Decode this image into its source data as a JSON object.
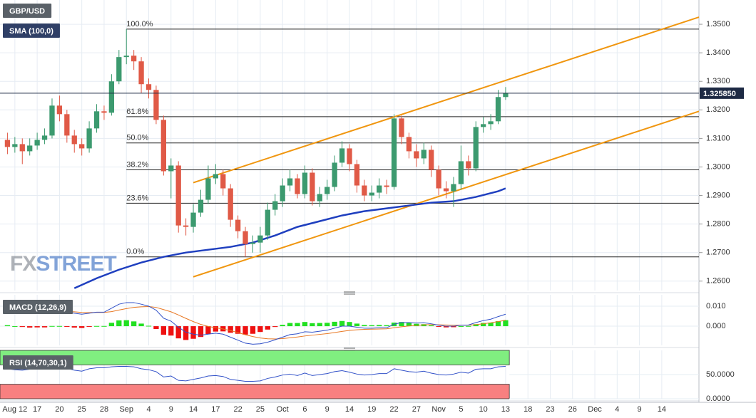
{
  "chart_data": [
    {
      "type": "candlestick",
      "symbol": "GBP/USD",
      "x": [
        0,
        1,
        2,
        3,
        4,
        5,
        6,
        7,
        8,
        9,
        10,
        11,
        12,
        13,
        14,
        15,
        16,
        17,
        18,
        19,
        20,
        21,
        22,
        23,
        24,
        25,
        26,
        27,
        28,
        29,
        30,
        31,
        32,
        33,
        34,
        35,
        36,
        37,
        38,
        39,
        40,
        41,
        42,
        43,
        44,
        45,
        46,
        47,
        48,
        49,
        50,
        51,
        52,
        53,
        54,
        55,
        56,
        57,
        58,
        59,
        60,
        61,
        62,
        63,
        64,
        65,
        66,
        67
      ],
      "open": [
        1.3095,
        1.307,
        1.308,
        1.3055,
        1.3075,
        1.3095,
        1.311,
        1.3215,
        1.3185,
        1.311,
        1.308,
        1.3065,
        1.3135,
        1.3195,
        1.319,
        1.33,
        1.3385,
        1.339,
        1.337,
        1.329,
        1.327,
        1.3165,
        1.2985,
        1.3005,
        1.2795,
        1.279,
        1.284,
        1.2885,
        1.296,
        1.2975,
        1.2925,
        1.2815,
        1.2775,
        1.273,
        1.2735,
        1.276,
        1.285,
        1.288,
        1.2935,
        1.296,
        1.2905,
        1.298,
        1.288,
        1.2905,
        1.293,
        1.3015,
        1.3065,
        1.301,
        1.2935,
        1.29,
        1.291,
        1.2935,
        1.293,
        1.317,
        1.3105,
        1.3055,
        1.303,
        1.306,
        1.299,
        1.2925,
        1.2915,
        1.294,
        1.302,
        1.2995,
        1.314,
        1.315,
        1.316,
        1.3245
      ],
      "high": [
        1.312,
        1.3105,
        1.31,
        1.31,
        1.312,
        1.3135,
        1.324,
        1.325,
        1.32,
        1.313,
        1.31,
        1.316,
        1.322,
        1.3215,
        1.3325,
        1.341,
        1.3483,
        1.341,
        1.3385,
        1.331,
        1.3285,
        1.318,
        1.303,
        1.302,
        1.282,
        1.287,
        1.292,
        1.3005,
        1.301,
        1.299,
        1.294,
        1.283,
        1.279,
        1.276,
        1.279,
        1.2875,
        1.2905,
        1.296,
        1.299,
        1.2975,
        1.3005,
        1.2995,
        1.293,
        1.2955,
        1.304,
        1.309,
        1.308,
        1.3025,
        1.2955,
        1.2935,
        1.296,
        1.2955,
        1.3185,
        1.318,
        1.312,
        1.308,
        1.3085,
        1.3075,
        1.3005,
        1.295,
        1.2965,
        1.3075,
        1.304,
        1.316,
        1.3175,
        1.3185,
        1.327,
        1.328
      ],
      "low": [
        1.3045,
        1.305,
        1.301,
        1.304,
        1.306,
        1.308,
        1.31,
        1.316,
        1.3085,
        1.305,
        1.304,
        1.305,
        1.312,
        1.3165,
        1.318,
        1.329,
        1.336,
        1.334,
        1.326,
        1.324,
        1.315,
        1.297,
        1.289,
        1.277,
        1.276,
        1.277,
        1.2825,
        1.287,
        1.294,
        1.29,
        1.279,
        1.275,
        1.2685,
        1.27,
        1.27,
        1.2745,
        1.283,
        1.286,
        1.2915,
        1.289,
        1.289,
        1.2865,
        1.286,
        1.2885,
        1.2915,
        1.3,
        1.2985,
        1.291,
        1.288,
        1.288,
        1.289,
        1.2905,
        1.292,
        1.308,
        1.303,
        1.3,
        1.301,
        1.2965,
        1.29,
        1.289,
        1.286,
        1.292,
        1.297,
        1.2985,
        1.312,
        1.313,
        1.315,
        1.3235
      ],
      "close": [
        1.307,
        1.308,
        1.3055,
        1.3075,
        1.3095,
        1.311,
        1.3215,
        1.3185,
        1.311,
        1.308,
        1.3065,
        1.3135,
        1.3195,
        1.319,
        1.33,
        1.3385,
        1.339,
        1.337,
        1.329,
        1.327,
        1.3165,
        1.2985,
        1.3005,
        1.2795,
        1.279,
        1.284,
        1.2885,
        1.296,
        1.2975,
        1.2925,
        1.2815,
        1.2775,
        1.273,
        1.2735,
        1.276,
        1.285,
        1.288,
        1.2935,
        1.296,
        1.2905,
        1.298,
        1.288,
        1.2905,
        1.293,
        1.3015,
        1.3065,
        1.301,
        1.2935,
        1.29,
        1.291,
        1.2935,
        1.293,
        1.317,
        1.3105,
        1.3055,
        1.303,
        1.306,
        1.299,
        1.2925,
        1.2915,
        1.294,
        1.302,
        1.2995,
        1.314,
        1.315,
        1.316,
        1.3245,
        1.32585
      ],
      "up_color": "#3c9a6f",
      "down_color": "#e05a47",
      "xlim": [
        -1,
        93
      ],
      "ylim": [
        1.2567,
        1.3585
      ],
      "yticks": [
        {
          "value": 1.26,
          "label": "1.2600"
        },
        {
          "value": 1.27,
          "label": "1.2700"
        },
        {
          "value": 1.28,
          "label": "1.2800"
        },
        {
          "value": 1.29,
          "label": "1.2900"
        },
        {
          "value": 1.3,
          "label": "1.3000"
        },
        {
          "value": 1.31,
          "label": "1.3100"
        },
        {
          "value": 1.32,
          "label": "1.3200"
        },
        {
          "value": 1.33,
          "label": "1.3300"
        },
        {
          "value": 1.34,
          "label": "1.3400"
        },
        {
          "value": 1.35,
          "label": "1.3500"
        }
      ],
      "xticks": [
        {
          "value": 1,
          "label": "Aug 12"
        },
        {
          "value": 4,
          "label": "17"
        },
        {
          "value": 7,
          "label": "20"
        },
        {
          "value": 10,
          "label": "25"
        },
        {
          "value": 13,
          "label": "28"
        },
        {
          "value": 16,
          "label": "Sep"
        },
        {
          "value": 19,
          "label": "4"
        },
        {
          "value": 22,
          "label": "9"
        },
        {
          "value": 25,
          "label": "14"
        },
        {
          "value": 28,
          "label": "17"
        },
        {
          "value": 31,
          "label": "22"
        },
        {
          "value": 34,
          "label": "25"
        },
        {
          "value": 37,
          "label": "Oct"
        },
        {
          "value": 40,
          "label": "6"
        },
        {
          "value": 43,
          "label": "9"
        },
        {
          "value": 46,
          "label": "14"
        },
        {
          "value": 49,
          "label": "19"
        },
        {
          "value": 52,
          "label": "22"
        },
        {
          "value": 55,
          "label": "27"
        },
        {
          "value": 58,
          "label": "Nov"
        },
        {
          "value": 61,
          "label": "5"
        },
        {
          "value": 64,
          "label": "10"
        },
        {
          "value": 67,
          "label": "13"
        },
        {
          "value": 70,
          "label": "18"
        },
        {
          "value": 73,
          "label": "23"
        },
        {
          "value": 76,
          "label": "26"
        },
        {
          "value": 79,
          "label": "Dec"
        },
        {
          "value": 82,
          "label": "4"
        },
        {
          "value": 85,
          "label": "9"
        },
        {
          "value": 88,
          "label": "14"
        }
      ],
      "grid": true,
      "sma": {
        "name": "SMA (100,0)",
        "color": "#1f3fbf",
        "x": [
          9,
          12,
          15,
          18,
          21,
          24,
          27,
          30,
          33,
          36,
          39,
          42,
          45,
          48,
          51,
          54,
          57,
          60,
          63,
          66,
          67
        ],
        "values": [
          1.2575,
          1.261,
          1.264,
          1.2665,
          1.2685,
          1.27,
          1.271,
          1.272,
          1.2735,
          1.276,
          1.279,
          1.281,
          1.283,
          1.2845,
          1.2855,
          1.2865,
          1.2875,
          1.288,
          1.2895,
          1.2915,
          1.2925
        ]
      },
      "fib_start": 16,
      "fib_levels": [
        {
          "label": "100.0%",
          "value": 1.3483
        },
        {
          "label": "61.8%",
          "value": 1.3176
        },
        {
          "label": "50.0%",
          "value": 1.3084
        },
        {
          "label": "38.2%",
          "value": 1.299
        },
        {
          "label": "23.6%",
          "value": 1.2873
        },
        {
          "label": "0.0%",
          "value": 1.2685
        }
      ],
      "channel_color": "#f0960f",
      "channel": [
        {
          "x": [
            25,
            93
          ],
          "values": [
            1.2945,
            1.3525
          ]
        },
        {
          "x": [
            25,
            93
          ],
          "values": [
            1.2615,
            1.3195
          ]
        }
      ],
      "last": {
        "value": 1.32585,
        "label": "1.325850"
      },
      "brand": [
        "FX",
        "STREET"
      ]
    },
    {
      "type": "macd",
      "name": "MACD (12,26,9)",
      "ylim": [
        -0.0096,
        0.0157
      ],
      "yticks": [
        {
          "value": 0.01,
          "label": "0.010"
        },
        {
          "value": 0,
          "label": "0.000"
        }
      ],
      "macd": {
        "color": "#3050c8",
        "values": [
          0.0085,
          0.008,
          0.0075,
          0.007,
          0.007,
          0.0068,
          0.0075,
          0.0075,
          0.007,
          0.0065,
          0.006,
          0.0065,
          0.007,
          0.007,
          0.009,
          0.011,
          0.0118,
          0.0118,
          0.011,
          0.01,
          0.008,
          0.004,
          0.0025,
          -0.0005,
          -0.003,
          -0.004,
          -0.0045,
          -0.004,
          -0.0035,
          -0.004,
          -0.0055,
          -0.007,
          -0.0085,
          -0.009,
          -0.0088,
          -0.008,
          -0.0068,
          -0.0055,
          -0.0042,
          -0.0038,
          -0.0028,
          -0.003,
          -0.0025,
          -0.002,
          -0.001,
          0,
          0,
          -0.0005,
          -0.001,
          -0.001,
          -0.0008,
          -0.0008,
          0.001,
          0.0018,
          0.0018,
          0.0016,
          0.0017,
          0.0012,
          0.0005,
          0,
          0,
          0.0005,
          0.0006,
          0.0018,
          0.0028,
          0.0035,
          0.0048,
          0.006
        ]
      },
      "signal": {
        "color": "#e87722",
        "values": [
          0.008,
          0.008,
          0.0079,
          0.0077,
          0.0076,
          0.0074,
          0.0074,
          0.0074,
          0.0073,
          0.0072,
          0.0069,
          0.0068,
          0.0069,
          0.0069,
          0.0073,
          0.0081,
          0.0088,
          0.0094,
          0.0097,
          0.0098,
          0.0094,
          0.0083,
          0.0072,
          0.0056,
          0.0039,
          0.0023,
          0.0009,
          -0.0001,
          -0.0008,
          -0.0014,
          -0.0022,
          -0.0032,
          -0.0043,
          -0.0052,
          -0.0059,
          -0.0063,
          -0.0064,
          -0.0062,
          -0.0058,
          -0.0054,
          -0.0049,
          -0.0045,
          -0.0041,
          -0.0037,
          -0.0032,
          -0.0026,
          -0.0021,
          -0.0018,
          -0.0016,
          -0.0015,
          -0.0014,
          -0.0013,
          -0.0008,
          -0.0003,
          0.0001,
          0.0004,
          0.0007,
          0.0008,
          0.0007,
          0.0006,
          0.0005,
          0.0005,
          0.0005,
          0.0008,
          0.0012,
          0.0017,
          0.0023,
          0.003
        ]
      },
      "histogram": {
        "up_color": "#22e022",
        "down_color": "#ee1111",
        "values": [
          0.0005,
          0,
          -0.0004,
          -0.0007,
          -0.0006,
          -0.0006,
          0.0001,
          0.0001,
          -0.0003,
          -0.0007,
          -0.0009,
          -0.0003,
          0.0001,
          0.0001,
          0.0017,
          0.0029,
          0.003,
          0.0024,
          0.0013,
          0.0002,
          -0.0014,
          -0.0043,
          -0.0047,
          -0.0061,
          -0.0069,
          -0.0063,
          -0.0054,
          -0.0039,
          -0.0027,
          -0.0026,
          -0.0033,
          -0.0038,
          -0.0042,
          -0.0038,
          -0.0029,
          -0.0017,
          -0.0004,
          0.0007,
          0.0016,
          0.0016,
          0.0021,
          0.0015,
          0.0016,
          0.0017,
          0.0022,
          0.0026,
          0.0021,
          0.0013,
          0.0006,
          0.0005,
          0.0006,
          0.0005,
          0.0018,
          0.0021,
          0.0017,
          0.0012,
          0.001,
          0.0004,
          -0.0002,
          -0.0006,
          -0.0005,
          0,
          0.0001,
          0.001,
          0.0016,
          0.0018,
          0.0025,
          0.003
        ]
      }
    },
    {
      "type": "rsi",
      "name": "RSI (14,70,30,1)",
      "color": "#3050c8",
      "ylim": [
        0,
        100
      ],
      "yticks": [
        {
          "value": 50,
          "label": "50.0000"
        },
        {
          "value": 0,
          "label": "0.0000"
        }
      ],
      "overbought": 70,
      "oversold": 30,
      "overbought_color": "#80ee80",
      "oversold_color": "#f88080",
      "values": [
        62,
        60,
        59,
        61,
        63,
        64,
        68,
        66,
        63,
        59,
        57,
        62,
        64,
        64,
        66,
        67,
        67,
        66,
        62,
        60,
        56,
        45,
        47,
        38,
        37,
        40,
        43,
        47,
        48,
        46,
        40,
        38,
        36,
        36,
        37,
        42,
        45,
        49,
        51,
        48,
        53,
        48,
        50,
        52,
        56,
        58,
        55,
        51,
        49,
        50,
        52,
        52,
        62,
        59,
        56,
        55,
        57,
        53,
        50,
        49,
        51,
        55,
        53,
        61,
        62,
        62,
        66,
        67
      ]
    }
  ]
}
